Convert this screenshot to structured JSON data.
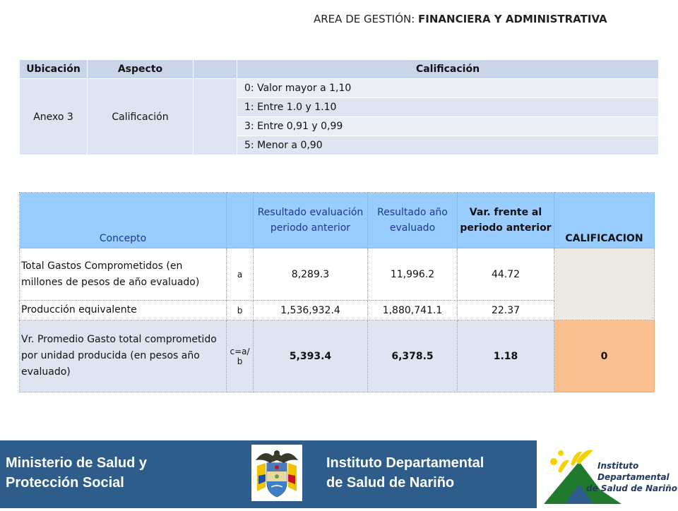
{
  "header": {
    "area_prefix": "AREA DE GESTIÓN: ",
    "area_value": "FINANCIERA Y ADMINISTRATIVA"
  },
  "table1": {
    "headers": [
      "Ubicación",
      "Aspecto",
      "",
      "Calificación"
    ],
    "ubicacion": "Anexo 3",
    "aspecto": "Calificación",
    "scale": [
      "0: Valor mayor a 1,10",
      "1: Entre 1.0 y 1.10",
      "3: Entre 0,91 y 0,99",
      "5: Menor a 0,90"
    ]
  },
  "table2": {
    "headers": {
      "concepto": "Concepto",
      "empty": "",
      "prev": "Resultado evaluación periodo anterior",
      "current": "Resultado año evaluado",
      "var": "Var. frente al periodo anterior",
      "calif": "CALIFICACION"
    },
    "rows": [
      {
        "concept": "Total Gastos Comprometidos (en millones de pesos de año evaluado)",
        "var": "a",
        "prev": "8,289.3",
        "current": "11,996.2",
        "change": "44.72"
      },
      {
        "concept": "Producción equivalente",
        "var": "b",
        "prev": "1,536,932.4",
        "current": "1,880,741.1",
        "change": "22.37"
      },
      {
        "concept": "Vr. Promedio Gasto total comprometido por unidad producida (en pesos año evaluado)",
        "var": "c=a/ b",
        "prev": "5,393.4",
        "current": "6,378.5",
        "change": "1.18",
        "calif": "0"
      }
    ]
  },
  "footer": {
    "left_line1": "Ministerio de Salud y",
    "left_line2": "Protección Social",
    "center_line1": "Instituto Departamental",
    "center_line2": "de Salud de Nariño",
    "logo_text1": "Instituto",
    "logo_text2": "Departamental",
    "logo_text3": "de Salud de Nariño"
  }
}
